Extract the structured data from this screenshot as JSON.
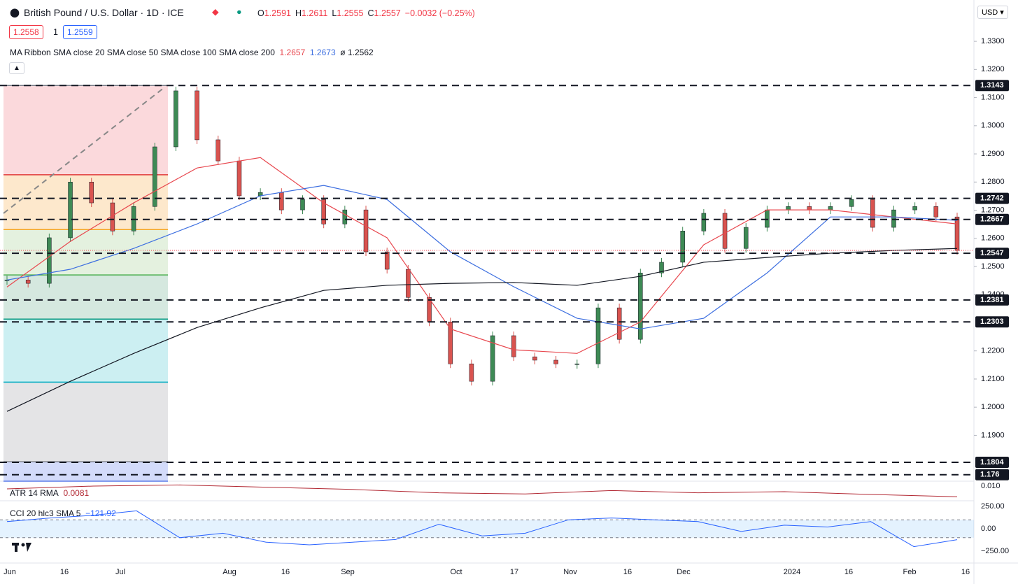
{
  "header": {
    "symbol": "British Pound / U.S. Dollar · 1D · ICE",
    "ohlc": [
      {
        "k": "O",
        "v": "1.2591"
      },
      {
        "k": "H",
        "v": "1.2611"
      },
      {
        "k": "L",
        "v": "1.2555"
      },
      {
        "k": "C",
        "v": "1.2557"
      }
    ],
    "change": "−0.0032 (−0.25%)"
  },
  "quote": {
    "bid": "1.2558",
    "qty": "1",
    "ask": "1.2559"
  },
  "ma_legend": {
    "label": "MA Ribbon SMA close 20 SMA close 50 SMA close 100 SMA close 200",
    "v1": "1.2657",
    "v2": "1.2673",
    "sym": "ø",
    "v3": "1.2562"
  },
  "currency": "USD",
  "chart_data": {
    "type": "candlestick",
    "closes": [
      1.2452,
      1.244,
      1.2602,
      1.28,
      1.2726,
      1.2626,
      1.2713,
      1.2925,
      1.3124,
      1.295,
      1.2875,
      1.2751,
      1.2763,
      1.2701,
      1.2738,
      1.2651,
      1.2701,
      1.2552,
      1.249,
      1.239,
      1.2303,
      1.2154,
      1.2092,
      1.2254,
      1.2179,
      1.2167,
      1.2154,
      1.2154,
      1.2353,
      1.2241,
      1.2477,
      1.2515,
      1.2626,
      1.2689,
      1.2564,
      1.2639,
      1.2701,
      1.2713,
      1.2701,
      1.2713,
      1.2738,
      1.2639,
      1.2701,
      1.2713,
      1.2676,
      1.2557
    ],
    "up_color": "#3e8a55",
    "down_color": "#d9534f",
    "ylim": [
      1.1737,
      1.3427
    ],
    "yticks": [
      {
        "value": 1.33,
        "label": "1.3300"
      },
      {
        "value": 1.32,
        "label": "1.3200"
      },
      {
        "value": 1.31,
        "label": "1.3100"
      },
      {
        "value": 1.3,
        "label": "1.3000"
      },
      {
        "value": 1.29,
        "label": "1.2900"
      },
      {
        "value": 1.28,
        "label": "1.2800"
      },
      {
        "value": 1.27,
        "label": "1.2700"
      },
      {
        "value": 1.26,
        "label": "1.2600"
      },
      {
        "value": 1.25,
        "label": "1.2500"
      },
      {
        "value": 1.24,
        "label": "1.2400"
      },
      {
        "value": 1.22,
        "label": "1.2200"
      },
      {
        "value": 1.21,
        "label": "1.2100"
      },
      {
        "value": 1.2,
        "label": "1.2000"
      },
      {
        "value": 1.19,
        "label": "1.1900"
      }
    ],
    "levels": [
      1.3143,
      1.2742,
      1.2667,
      1.2547,
      1.2381,
      1.2303,
      1.1804,
      1.176
    ],
    "last_price": 1.2557,
    "fib": [
      {
        "value": 1.3143,
        "color": "#787b86",
        "fill": "#fbd9dc"
      },
      {
        "value": 1.2826,
        "color": "#e03a3a",
        "fill": "#fde8cc"
      },
      {
        "value": 1.2631,
        "color": "#f5a623",
        "fill": "#e4f1df"
      },
      {
        "value": 1.247,
        "color": "#4caf50",
        "fill": "#d5e8df"
      },
      {
        "value": 1.2313,
        "color": "#089981",
        "fill": "#cceff2"
      },
      {
        "value": 1.2089,
        "color": "#00acc1",
        "fill": "#e4e4e6"
      },
      {
        "value": 1.1806,
        "color": "#787b86",
        "fill": "#d3dbfa"
      },
      {
        "value": 1.1737,
        "color": "#5b7de8"
      }
    ],
    "moving_averages": [
      {
        "color": "#e8484f",
        "values": [
          1.2427,
          1.2589,
          1.2726,
          1.285,
          1.2887,
          1.2726,
          1.2602,
          1.2278,
          1.2204,
          1.2191,
          1.2303,
          1.2577,
          1.2701,
          1.2701,
          1.2676,
          1.2651
        ]
      },
      {
        "color": "#3d6fe0",
        "values": [
          1.2452,
          1.249,
          1.2564,
          1.2651,
          1.2751,
          1.2788,
          1.2738,
          1.2552,
          1.2428,
          1.2316,
          1.2278,
          1.2316,
          1.2477,
          1.2676,
          1.2676,
          1.2664
        ]
      },
      {
        "color": "#131722",
        "values": [
          1.1985,
          1.2092,
          1.2191,
          1.2283,
          1.2353,
          1.2415,
          1.2433,
          1.244,
          1.2443,
          1.2433,
          1.2465,
          1.2515,
          1.2532,
          1.2547,
          1.2557,
          1.2564
        ]
      }
    ]
  },
  "atr": {
    "label": "ATR 14 RMA",
    "value": "0.0081",
    "color": "#b22833",
    "values": [
      0.0095,
      0.01,
      0.0102,
      0.0098,
      0.0094,
      0.0088,
      0.0086,
      0.0092,
      0.0088,
      0.009,
      0.0085,
      0.0081
    ],
    "ylim": [
      0.0075,
      0.010625
    ],
    "yticks": [
      {
        "value": 0.01,
        "label": "0.010"
      }
    ]
  },
  "cci": {
    "label": "CCI 20 hlc3 SMA 5",
    "value": "−121.92",
    "color": "#2962ff",
    "band": [
      -100,
      100
    ],
    "values": [
      80,
      120,
      150,
      200,
      -100,
      -50,
      -150,
      -180,
      -150,
      -120,
      50,
      -80,
      -50,
      100,
      120,
      100,
      80,
      -30,
      40,
      20,
      80,
      -200,
      -121.92
    ],
    "ylim": [
      -367.2,
      281.25
    ],
    "yticks": [
      {
        "value": 250,
        "label": "250.00"
      },
      {
        "value": 0,
        "label": "0.00"
      },
      {
        "value": -250,
        "label": "−250.00"
      }
    ]
  },
  "x_labels": [
    "Jun",
    "16",
    "Jul",
    "Aug",
    "16",
    "Sep",
    "Oct",
    "17",
    "Nov",
    "16",
    "Dec",
    "2024",
    "16",
    "Feb",
    "16"
  ]
}
